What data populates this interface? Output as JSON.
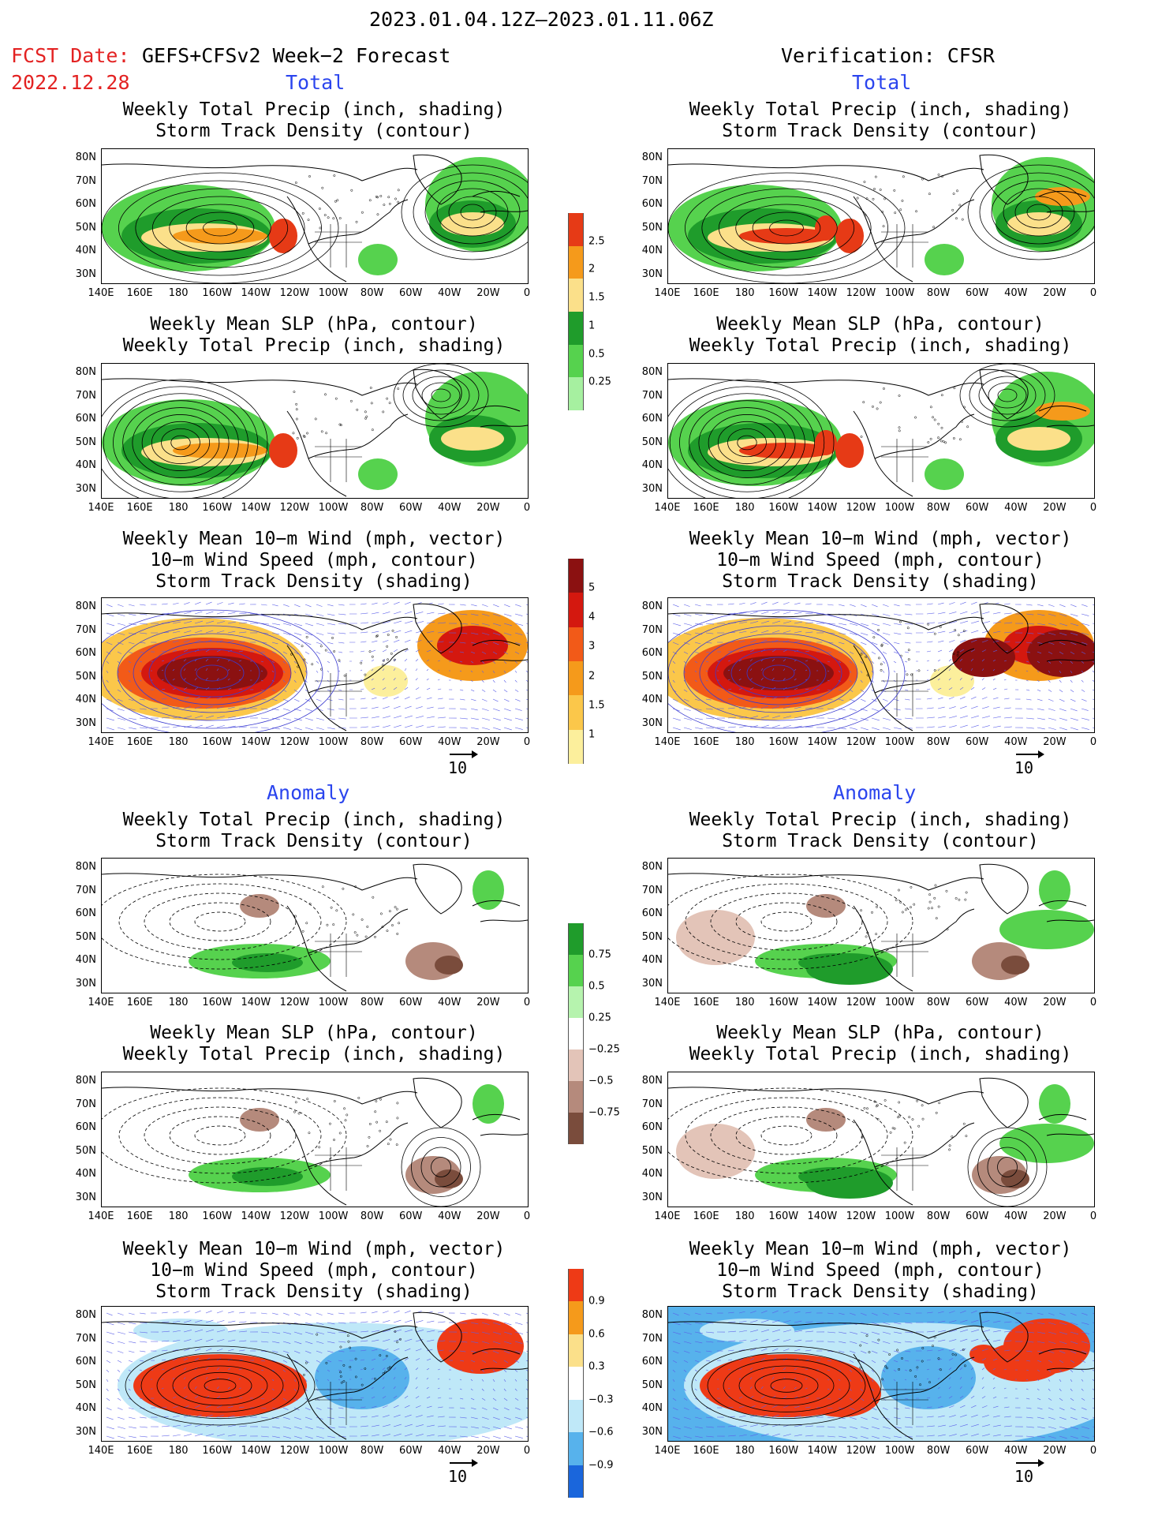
{
  "header": {
    "period": "2023.01.04.12Z–2023.01.11.06Z",
    "fcst_label": "FCST Date:",
    "fcst_model": "GEFS+CFSv2 Week−2 Forecast",
    "fcst_date": "2022.12.28",
    "verification": "Verification: CFSR"
  },
  "sections": {
    "total": "Total",
    "anomaly": "Anomaly"
  },
  "titles": {
    "precip_storm": [
      "Weekly Total Precip (inch, shading)",
      "Storm Track Density (contour)"
    ],
    "slp_precip": [
      "Weekly Mean SLP (hPa, contour)",
      "Weekly Total Precip (inch, shading)"
    ],
    "wind_storm": [
      "Weekly Mean 10−m Wind (mph, vector)",
      "10−m Wind Speed (mph, contour)",
      "Storm Track Density (shading)"
    ]
  },
  "axes": {
    "lat_ticks": [
      "80N",
      "70N",
      "60N",
      "50N",
      "40N",
      "30N"
    ],
    "lon_ticks": [
      "140E",
      "160E",
      "180",
      "160W",
      "140W",
      "120W",
      "100W",
      "80W",
      "60W",
      "40W",
      "20W",
      "0"
    ]
  },
  "vector_ref": "10",
  "colorbars": {
    "precip_total": {
      "labels": [
        "2.5",
        "2",
        "1.5",
        "1",
        "0.5",
        "0.25"
      ],
      "colors": [
        "#e63a16",
        "#f59a1b",
        "#fbe08a",
        "#1f9c2b",
        "#56d24e",
        "#a6f0a0"
      ]
    },
    "storm_total": {
      "labels": [
        "5",
        "4",
        "3",
        "2",
        "1.5",
        "1"
      ],
      "colors": [
        "#8b1111",
        "#d4180f",
        "#f25a18",
        "#f59a1b",
        "#fbc74a",
        "#fcef9c"
      ]
    },
    "precip_anom": {
      "labels": [
        "0.75",
        "0.5",
        "0.25",
        "−0.25",
        "−0.5",
        "−0.75"
      ],
      "colors": [
        "#1f9c2b",
        "#56d24e",
        "#b6f3ae",
        "#ffffff",
        "#e3c4b8",
        "#b58a7c",
        "#7a4c3c"
      ]
    },
    "storm_anom": {
      "labels": [
        "0.9",
        "0.6",
        "0.3",
        "−0.3",
        "−0.6",
        "−0.9"
      ],
      "colors": [
        "#ee3a16",
        "#f59a1b",
        "#fbe08a",
        "#ffffff",
        "#bfe8f8",
        "#57b2ec",
        "#1a66dc"
      ]
    }
  }
}
